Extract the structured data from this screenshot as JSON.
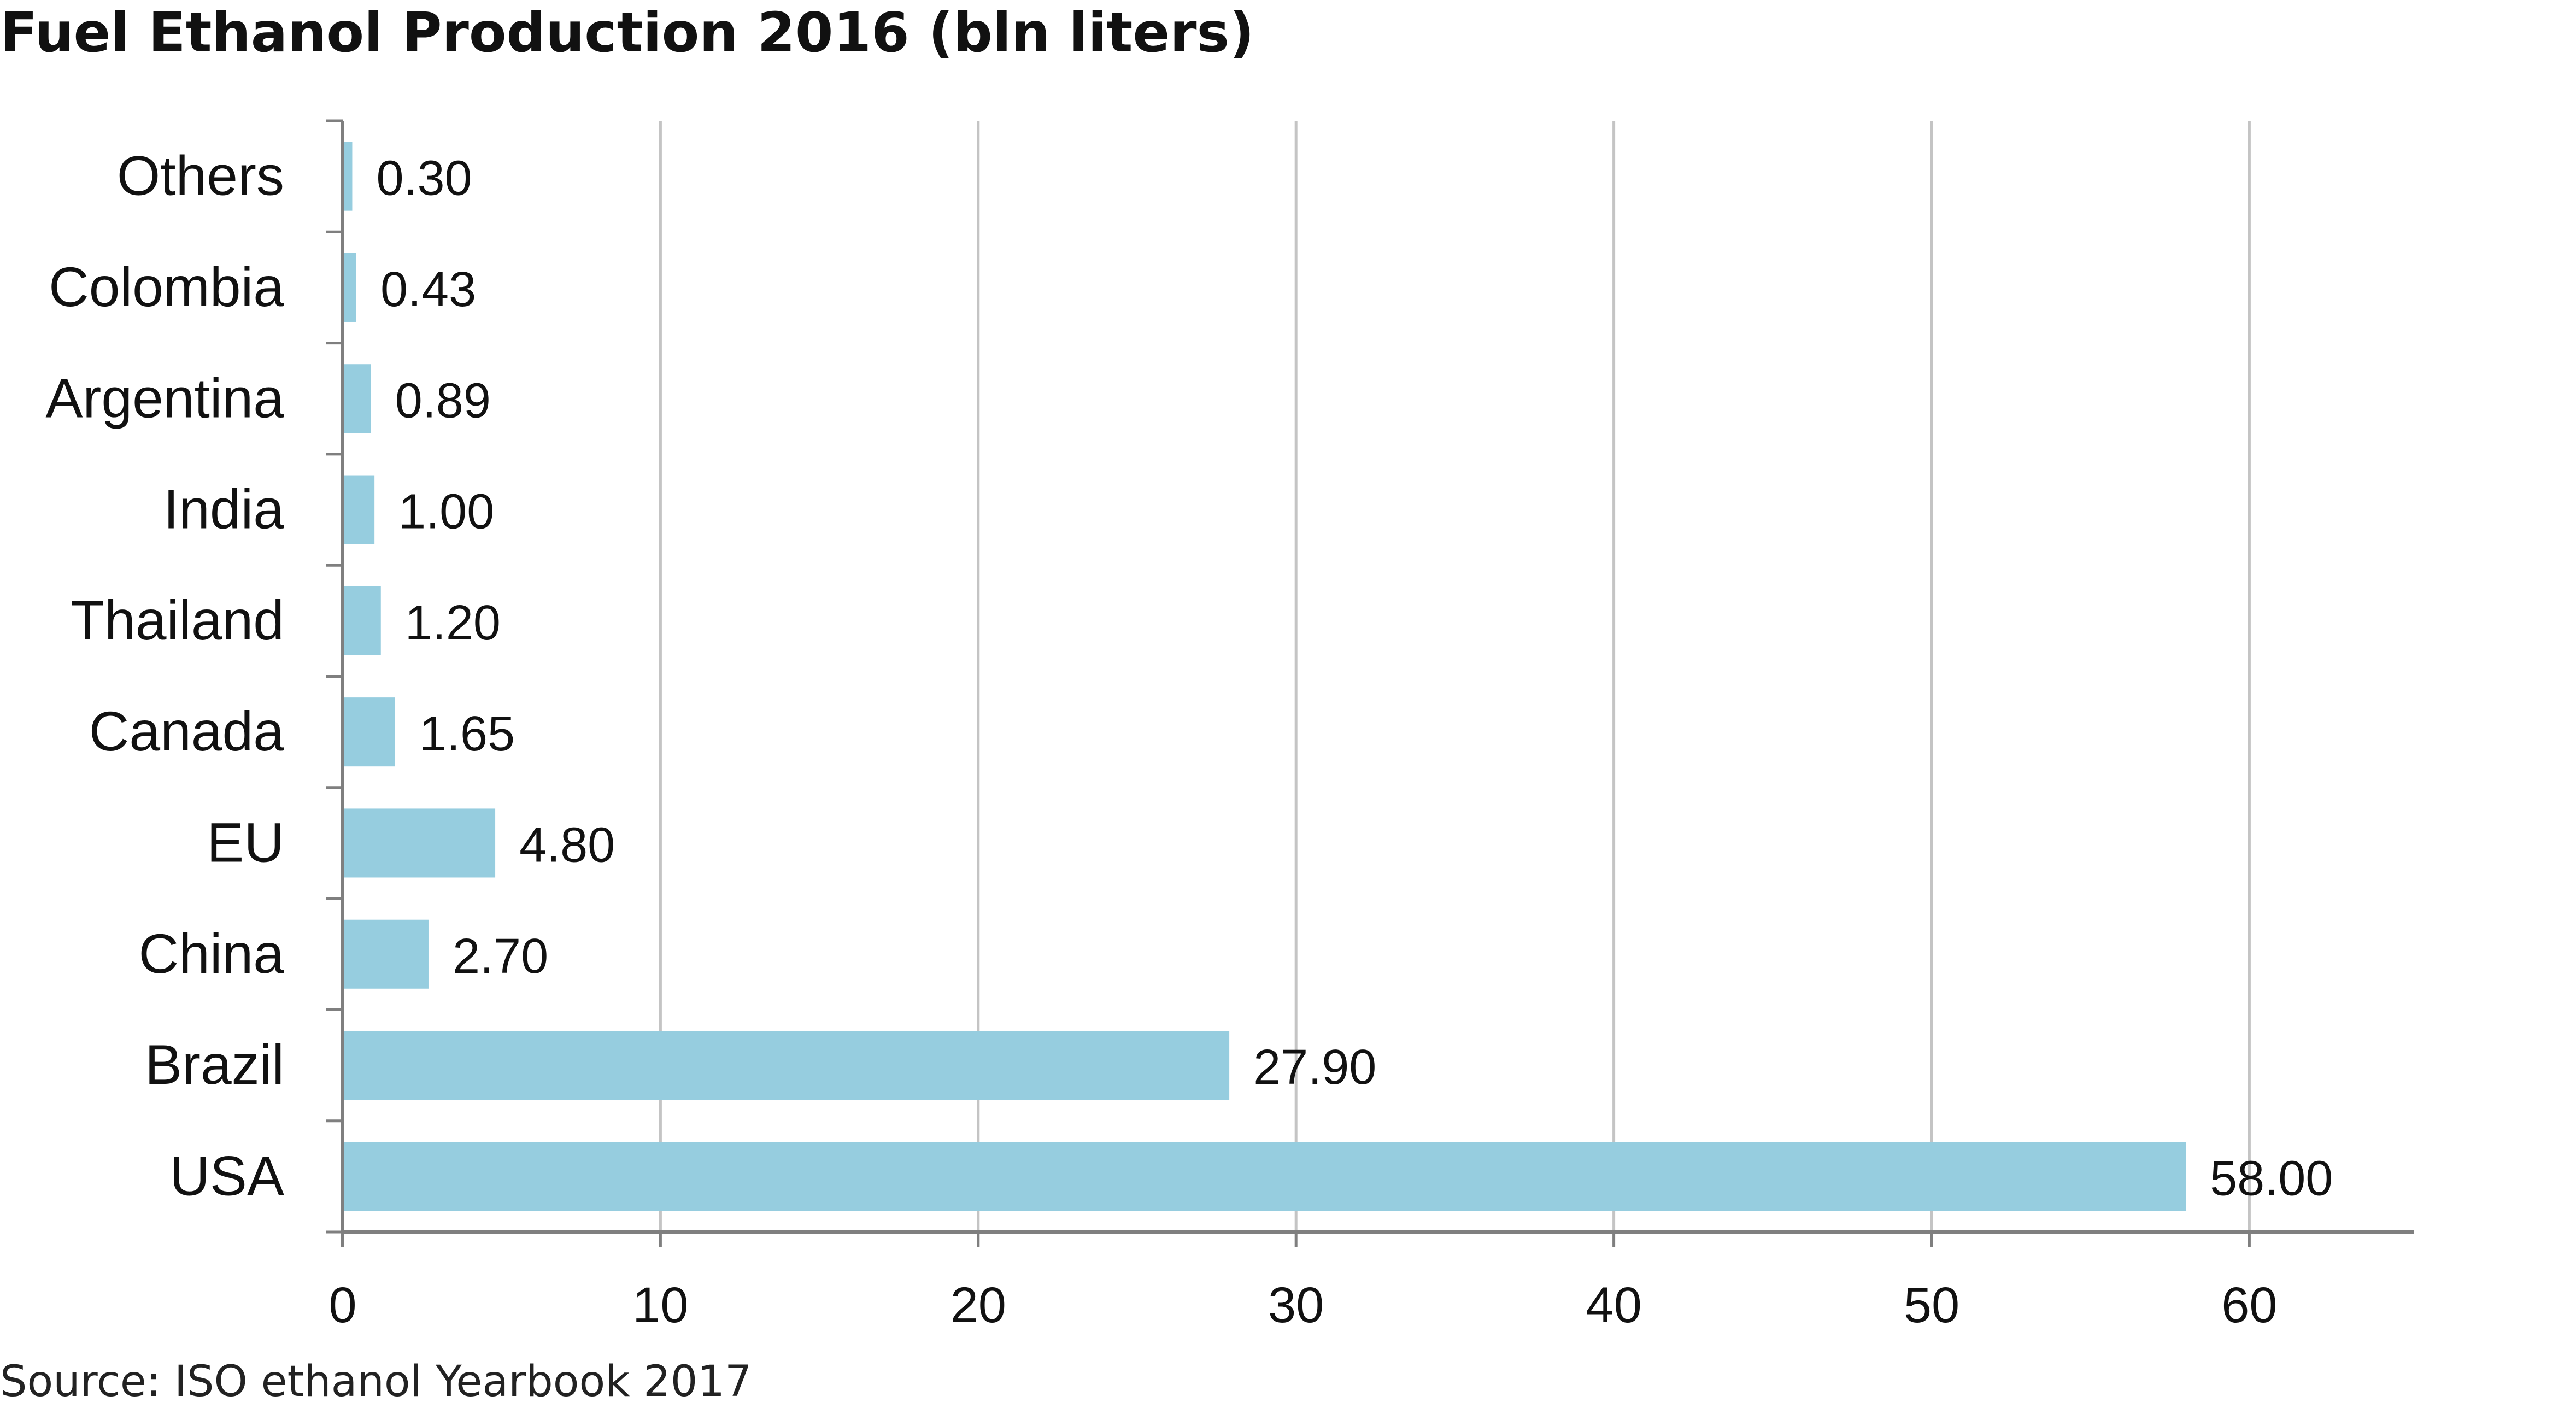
{
  "title": "Fuel Ethanol Production 2016 (bln liters)",
  "source": "Source: ISO ethanol Yearbook 2017",
  "colors": {
    "bar": "#96cddf",
    "grid": "#c4c4c4",
    "axis": "#7f7f7f"
  },
  "chart_data": {
    "type": "bar",
    "orientation": "horizontal",
    "title": "Fuel Ethanol Production 2016 (bln liters)",
    "xlabel": "",
    "ylabel": "",
    "categories": [
      "Others",
      "Colombia",
      "Argentina",
      "India",
      "Thailand",
      "Canada",
      "EU",
      "China",
      "Brazil",
      "USA"
    ],
    "values": [
      0.3,
      0.43,
      0.89,
      1.0,
      1.2,
      1.65,
      4.8,
      2.7,
      27.9,
      58.0
    ],
    "value_labels": [
      "0.30",
      "0.43",
      "0.89",
      "1.00",
      "1.20",
      "1.65",
      "4.80",
      "2.70",
      "27.90",
      "58.00"
    ],
    "xlim": [
      0,
      65
    ],
    "xticks": [
      0,
      10,
      20,
      30,
      40,
      50,
      60
    ],
    "tick_labels": [
      "0",
      "10",
      "20",
      "30",
      "40",
      "50",
      "60"
    ],
    "grid": "vertical",
    "legend": "none"
  }
}
